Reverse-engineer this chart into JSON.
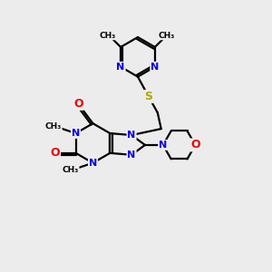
{
  "bg_color": "#ececec",
  "bond_color": "#000000",
  "N_color": "#0000ee",
  "O_color": "#ee0000",
  "S_color": "#aaaa00",
  "line_width": 1.6,
  "font_size": 8.0,
  "fig_width": 3.0,
  "fig_height": 3.0,
  "dpi": 100,
  "xlim": [
    0,
    3.0
  ],
  "ylim": [
    0,
    3.0
  ]
}
